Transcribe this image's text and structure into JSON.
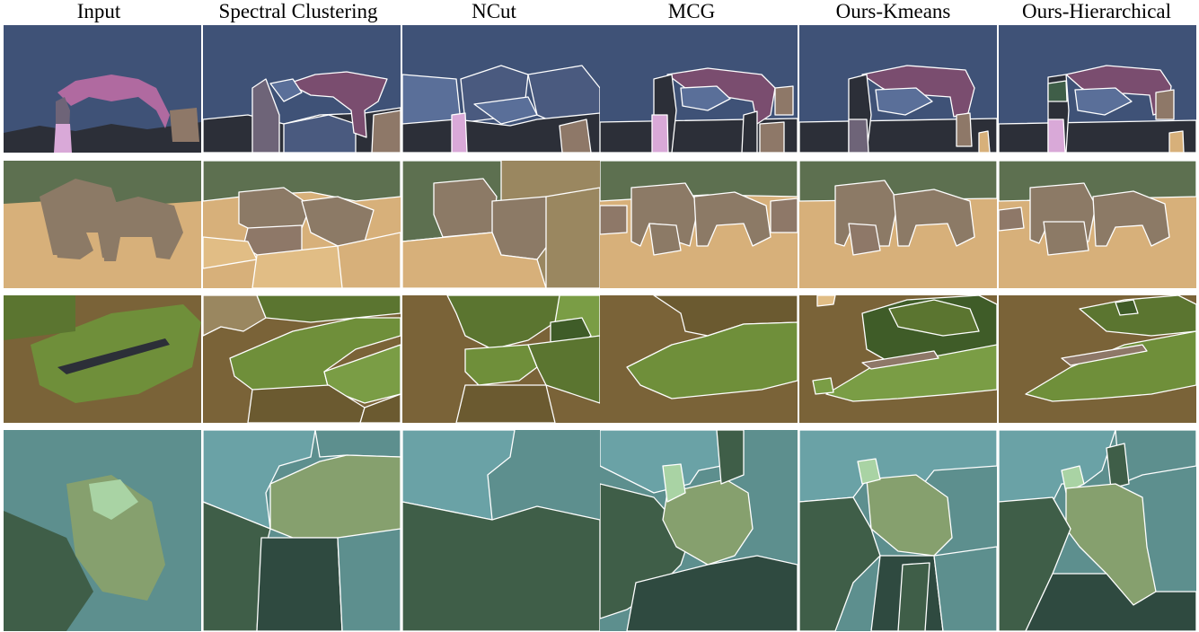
{
  "figure": {
    "columns": [
      "Input",
      "Spectral Clustering",
      "NCut",
      "MCG",
      "Ours-Kmeans",
      "Ours-Hierarchical"
    ],
    "rows": [
      {
        "subject": "woman with scarf"
      },
      {
        "subject": "elephants"
      },
      {
        "subject": "salamander on leaf"
      },
      {
        "subject": "porcupine"
      }
    ]
  },
  "colors": {
    "sky": "#3f5277",
    "dark": "#2c2f38",
    "scarf": "#7a4d6f",
    "scarf_light": "#b06aa0",
    "woman": "#6e6478",
    "dress": "#d9a9d8",
    "blue_mid": "#5a6f99",
    "slate": "#4a5a7f",
    "taupe": "#8e7868",
    "elephant": "#8c7a66",
    "grass": "#d7b07a",
    "grass_light": "#e1bd85",
    "treeline": "#5d7050",
    "olive": "#9a8760",
    "brown_soil": "#7a6338",
    "dark_soil": "#6b5a30",
    "leaf": "#6f8f3a",
    "leaf_dark": "#5b7530",
    "leaf_bright": "#7a9d45",
    "leaf_deep": "#3f5c28",
    "teal_sky": "#6aa2a6",
    "teal_mid": "#5d8f8e",
    "pine": "#3f5e48",
    "pine_dark": "#2f4a40",
    "porcupine": "#86a06e",
    "porcupine_light": "#a9d3a4",
    "boundary": "#ffffff"
  }
}
